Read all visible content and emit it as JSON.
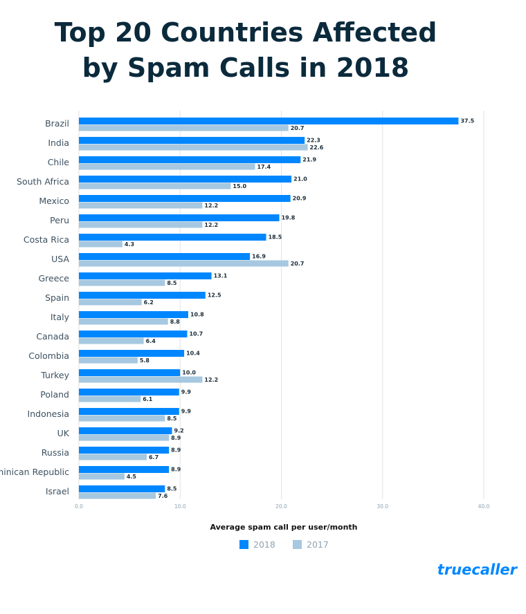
{
  "chart_data": {
    "type": "bar",
    "orientation": "horizontal",
    "title": [
      "Top 20 Countries Affected",
      "by Spam Calls in 2018"
    ],
    "xlabel": "Average spam call per user/month",
    "ylabel": "",
    "xlim": [
      0,
      40
    ],
    "xticks": [
      "0.0",
      "10.0",
      "20.0",
      "30.0",
      "40.0"
    ],
    "grid": true,
    "legend_position": "bottom",
    "categories": [
      "Brazil",
      "India",
      "Chile",
      "South Africa",
      "Mexico",
      "Peru",
      "Costa Rica",
      "USA",
      "Greece",
      "Spain",
      "Italy",
      "Canada",
      "Colombia",
      "Turkey",
      "Poland",
      "Indonesia",
      "UK",
      "Russia",
      "Dominican Republic",
      "Israel"
    ],
    "series": [
      {
        "name": "2018",
        "color": "#0087ff",
        "values": [
          37.5,
          22.3,
          21.9,
          21.0,
          20.9,
          19.8,
          18.5,
          16.9,
          13.1,
          12.5,
          10.8,
          10.7,
          10.4,
          10.0,
          9.9,
          9.9,
          9.2,
          8.9,
          8.9,
          8.5
        ]
      },
      {
        "name": "2017",
        "color": "#a6c8e0",
        "values": [
          20.7,
          22.6,
          17.4,
          15.0,
          12.2,
          12.2,
          4.3,
          20.7,
          8.5,
          6.2,
          8.8,
          6.4,
          5.8,
          12.2,
          6.1,
          8.5,
          8.9,
          6.7,
          4.5,
          7.6
        ]
      }
    ]
  },
  "logo": "truecaller"
}
